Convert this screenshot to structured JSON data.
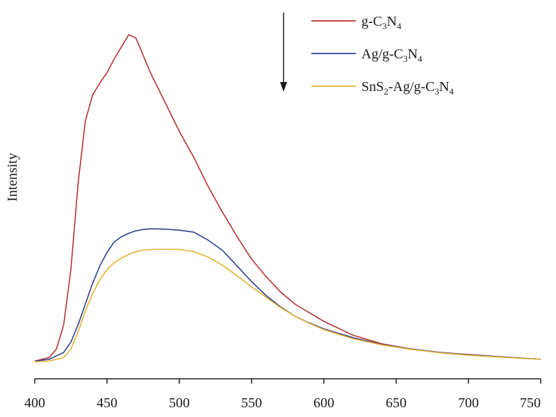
{
  "chart_data": {
    "type": "line",
    "title": "",
    "xlabel": "",
    "ylabel": "Intensity",
    "xlim": [
      400,
      750
    ],
    "ylim": [
      0,
      100
    ],
    "xticks": [
      400,
      450,
      500,
      550,
      600,
      650,
      700,
      750
    ],
    "grid": false,
    "legend_position": "top-right",
    "arrow": "down",
    "series": [
      {
        "name": "g-C3N4",
        "color": "#b5302e",
        "legend": {
          "pre": "g-C",
          "sub1": "3",
          "mid": "N",
          "sub2": "4",
          "post": ""
        },
        "x": [
          400,
          410,
          415,
          420,
          425,
          430,
          435,
          440,
          445,
          450,
          455,
          460,
          465,
          470,
          475,
          480,
          490,
          500,
          510,
          520,
          530,
          540,
          550,
          560,
          570,
          580,
          590,
          600,
          620,
          640,
          660,
          680,
          700,
          720,
          750
        ],
        "y": [
          0.5,
          1.5,
          4,
          11,
          27,
          52,
          70,
          77.5,
          81,
          84,
          88,
          91.5,
          95,
          94,
          89,
          84,
          75.5,
          67,
          59.5,
          51,
          43.5,
          36.5,
          30,
          25,
          20.5,
          17,
          14.5,
          12,
          8,
          5.5,
          4,
          3,
          2.4,
          1.8,
          1.0
        ]
      },
      {
        "name": "Ag/g-C3N4",
        "color": "#2c3e8f",
        "legend": {
          "pre": "Ag/g-C",
          "sub1": "3",
          "mid": "N",
          "sub2": "4",
          "post": ""
        },
        "x": [
          400,
          410,
          420,
          425,
          430,
          435,
          440,
          445,
          450,
          455,
          460,
          465,
          470,
          475,
          480,
          490,
          500,
          510,
          520,
          530,
          540,
          550,
          560,
          570,
          580,
          590,
          600,
          620,
          640,
          660,
          680,
          700,
          720,
          750
        ],
        "y": [
          0.5,
          1,
          3,
          6,
          11,
          17,
          23,
          28,
          32,
          35,
          36.5,
          37.5,
          38.2,
          38.6,
          38.8,
          38.7,
          38.4,
          37.8,
          35.5,
          32.5,
          28,
          23.5,
          19.5,
          16.2,
          13.5,
          11.5,
          9.8,
          7.3,
          5.3,
          4,
          3,
          2.3,
          1.8,
          1.0
        ]
      },
      {
        "name": "SnS2-Ag/g-C3N4",
        "color": "#e3b02d",
        "legend": {
          "pre": "SnS",
          "sub1": "2",
          "mid": "-Ag/g-C",
          "sub2": "3",
          "post": "N",
          "sub3": "4"
        },
        "x": [
          400,
          410,
          420,
          425,
          430,
          435,
          440,
          445,
          450,
          455,
          460,
          465,
          470,
          475,
          480,
          490,
          500,
          510,
          520,
          530,
          540,
          550,
          560,
          570,
          580,
          590,
          600,
          620,
          640,
          660,
          680,
          700,
          720,
          750
        ],
        "y": [
          0.3,
          0.5,
          1.5,
          4,
          9,
          15,
          20,
          24,
          27,
          29,
          30.3,
          31.4,
          32.2,
          32.6,
          32.8,
          32.9,
          32.8,
          32.2,
          30.6,
          28.2,
          25.2,
          22,
          19,
          16,
          13.5,
          11.4,
          9.6,
          7,
          5.2,
          3.9,
          2.9,
          2.2,
          1.7,
          1.0
        ]
      }
    ]
  }
}
